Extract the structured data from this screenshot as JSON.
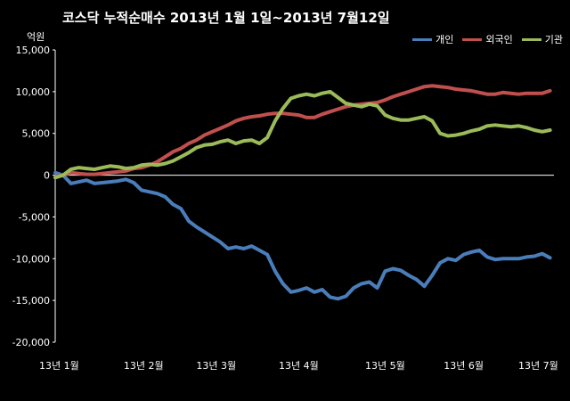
{
  "chart_data": {
    "type": "line",
    "title": "코스닥  누적순매수 2013년 1월 1일~2013년 7월12일",
    "ylabel": "억원",
    "ylim": [
      -20000,
      15000
    ],
    "y_ticks": [
      "15,000",
      "10,000",
      "5,000",
      "0",
      "-5,000",
      "-10,000",
      "-15,000",
      "-20,000"
    ],
    "y_tick_values": [
      15000,
      10000,
      5000,
      0,
      -5000,
      -10000,
      -15000,
      -20000
    ],
    "x_tick_labels": [
      "13년 1월",
      "13년 2월",
      "13년 3월",
      "13년 4월",
      "13년 5월",
      "13년 6월",
      "13년 7월"
    ],
    "x_tick_positions": [
      1,
      22.5,
      41,
      62,
      84,
      104,
      123
    ],
    "x_range": [
      0,
      127
    ],
    "grid": false,
    "legend": "top-right",
    "series": [
      {
        "name": "개인",
        "color": "#4a7ebb",
        "x": [
          0,
          2,
          4,
          6,
          8,
          10,
          12,
          14,
          16,
          18,
          20,
          22,
          24,
          26,
          28,
          30,
          32,
          34,
          36,
          38,
          40,
          42,
          44,
          46,
          48,
          50,
          52,
          54,
          56,
          58,
          60,
          62,
          64,
          66,
          68,
          70,
          72,
          74,
          76,
          78,
          80,
          82,
          84,
          86,
          88,
          90,
          92,
          94,
          96,
          98,
          100,
          102,
          104,
          106,
          108,
          110,
          112,
          114,
          116,
          118,
          120,
          122,
          124,
          126
        ],
        "values": [
          300,
          0,
          -1000,
          -800,
          -600,
          -1000,
          -900,
          -800,
          -700,
          -500,
          -900,
          -1800,
          -2000,
          -2200,
          -2600,
          -3500,
          -4000,
          -5500,
          -6200,
          -6800,
          -7400,
          -8000,
          -8800,
          -8600,
          -8800,
          -8500,
          -9000,
          -9500,
          -11500,
          -13000,
          -14000,
          -13800,
          -13500,
          -14000,
          -13700,
          -14600,
          -14800,
          -14500,
          -13500,
          -13000,
          -12800,
          -13500,
          -11500,
          -11200,
          -11400,
          -12000,
          -12500,
          -13300,
          -12000,
          -10500,
          -10000,
          -10200,
          -9500,
          -9200,
          -9000,
          -9800,
          -10100,
          -10000,
          -10000,
          -10000,
          -9800,
          -9700,
          -9400,
          -9900
        ]
      },
      {
        "name": "외국인",
        "color": "#c0504d",
        "x": [
          0,
          2,
          4,
          6,
          8,
          10,
          12,
          14,
          16,
          18,
          20,
          22,
          24,
          26,
          28,
          30,
          32,
          34,
          36,
          38,
          40,
          42,
          44,
          46,
          48,
          50,
          52,
          54,
          56,
          58,
          60,
          62,
          64,
          66,
          68,
          70,
          72,
          74,
          76,
          78,
          80,
          82,
          84,
          86,
          88,
          90,
          92,
          94,
          96,
          98,
          100,
          102,
          104,
          106,
          108,
          110,
          112,
          114,
          116,
          118,
          120,
          122,
          124,
          126
        ],
        "values": [
          -200,
          0,
          300,
          200,
          100,
          100,
          200,
          300,
          400,
          500,
          800,
          900,
          1200,
          1600,
          2200,
          2800,
          3200,
          3800,
          4200,
          4800,
          5200,
          5600,
          6000,
          6500,
          6800,
          7000,
          7100,
          7300,
          7400,
          7400,
          7300,
          7200,
          6900,
          6900,
          7300,
          7600,
          7900,
          8200,
          8400,
          8500,
          8600,
          8700,
          9000,
          9400,
          9700,
          10000,
          10300,
          10600,
          10700,
          10600,
          10500,
          10300,
          10200,
          10100,
          9900,
          9700,
          9700,
          9900,
          9800,
          9700,
          9800,
          9800,
          9800,
          10100
        ]
      },
      {
        "name": "기관",
        "color": "#9bbb59",
        "x": [
          0,
          2,
          4,
          6,
          8,
          10,
          12,
          14,
          16,
          18,
          20,
          22,
          24,
          26,
          28,
          30,
          32,
          34,
          36,
          38,
          40,
          42,
          44,
          46,
          48,
          50,
          52,
          54,
          56,
          58,
          60,
          62,
          64,
          66,
          68,
          70,
          72,
          74,
          76,
          78,
          80,
          82,
          84,
          86,
          88,
          90,
          92,
          94,
          96,
          98,
          100,
          102,
          104,
          106,
          108,
          110,
          112,
          114,
          116,
          118,
          120,
          122,
          124,
          126
        ],
        "values": [
          -300,
          0,
          700,
          900,
          800,
          700,
          900,
          1100,
          1000,
          800,
          900,
          1200,
          1300,
          1200,
          1400,
          1700,
          2200,
          2700,
          3300,
          3600,
          3700,
          4000,
          4200,
          3800,
          4100,
          4200,
          3800,
          4500,
          6500,
          8000,
          9200,
          9500,
          9700,
          9500,
          9800,
          10000,
          9300,
          8600,
          8400,
          8200,
          8500,
          8300,
          7200,
          6800,
          6600,
          6600,
          6800,
          7000,
          6500,
          5000,
          4700,
          4800,
          5000,
          5300,
          5500,
          5900,
          6000,
          5900,
          5800,
          5900,
          5700,
          5400,
          5200,
          5400
        ]
      }
    ]
  }
}
